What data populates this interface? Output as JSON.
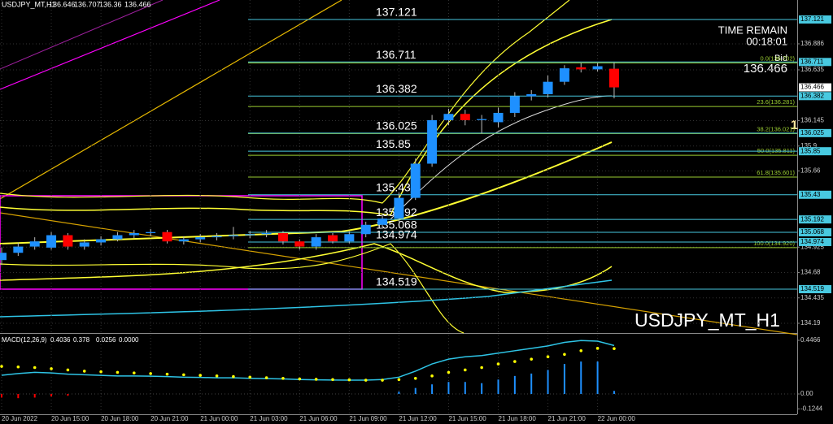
{
  "header": {
    "symbol": "USDJPY_MT,H1",
    "time_remain_label": "TIME REMAIN",
    "time_remain": "00:18:01",
    "bid_label": "Bid",
    "watermark": "USDJPY_MT_H1",
    "marker": "1"
  },
  "chart_data": [
    {
      "type": "candlestick",
      "categories": [
        "20 Jun 2022",
        null,
        null,
        "20 Jun 15:00",
        null,
        null,
        "20 Jun 18:00",
        null,
        null,
        "20 Jun 21:00",
        null,
        null,
        "21 Jun 00:00",
        null,
        null,
        "21 Jun 03:00",
        null,
        null,
        "21 Jun 06:00",
        null,
        null,
        "21 Jun 09:00",
        null,
        null,
        "21 Jun 12:00",
        null,
        null,
        "21 Jun 15:00",
        null,
        null,
        "21 Jun 18:00",
        null,
        null,
        "21 Jun 21:00",
        null,
        null,
        "22 Jun 00:00",
        null
      ],
      "open": [
        134.8,
        134.87,
        134.93,
        134.92,
        135.04,
        134.93,
        134.97,
        135.0,
        135.04,
        135.06,
        135.07,
        134.98,
        135.0,
        135.02,
        135.03,
        135.04,
        135.05,
        135.06,
        134.98,
        134.93,
        135.04,
        134.98,
        135.05,
        135.14,
        135.2,
        135.4,
        135.73,
        136.15,
        136.21,
        136.15,
        136.13,
        136.22,
        136.38,
        136.4,
        136.52,
        136.66,
        136.64,
        136.646
      ],
      "high": [
        134.92,
        134.97,
        135.02,
        135.07,
        135.06,
        135.0,
        135.03,
        135.07,
        135.09,
        135.1,
        135.09,
        135.03,
        135.05,
        135.06,
        135.12,
        135.08,
        135.09,
        135.08,
        135.0,
        135.05,
        135.06,
        135.08,
        135.17,
        135.24,
        135.45,
        135.78,
        136.2,
        136.26,
        136.25,
        136.2,
        136.27,
        136.42,
        136.44,
        136.58,
        136.68,
        136.7,
        136.7,
        136.707
      ],
      "low": [
        134.75,
        134.84,
        134.9,
        134.9,
        134.9,
        134.9,
        134.94,
        134.98,
        135.01,
        135.03,
        134.96,
        134.95,
        134.97,
        134.99,
        135.0,
        135.01,
        135.02,
        134.95,
        134.9,
        134.9,
        134.96,
        134.96,
        135.02,
        135.1,
        135.17,
        135.38,
        135.7,
        136.1,
        136.1,
        136.02,
        136.08,
        136.18,
        136.34,
        136.37,
        136.49,
        136.61,
        136.62,
        136.36
      ],
      "close": [
        134.87,
        134.93,
        134.98,
        135.04,
        134.93,
        134.97,
        135.0,
        135.04,
        135.06,
        135.07,
        134.98,
        135.0,
        135.02,
        135.03,
        135.04,
        135.05,
        135.06,
        134.98,
        134.93,
        135.02,
        134.98,
        135.05,
        135.14,
        135.2,
        135.4,
        135.73,
        136.15,
        136.21,
        136.15,
        136.16,
        136.22,
        136.38,
        136.4,
        136.52,
        136.65,
        136.64,
        136.67,
        136.466
      ],
      "up_color": "#1e90ff",
      "down_color": "#ff0000",
      "ylim": [
        134.096,
        137.309
      ],
      "yticks": [
        136.886,
        136.635,
        136.145,
        135.9,
        135.66,
        134.925,
        134.68,
        134.435,
        134.19
      ],
      "levels": [
        137.121,
        136.711,
        136.382,
        136.025,
        135.85,
        135.43,
        135.192,
        135.068,
        134.974,
        134.519
      ],
      "fib": [
        {
          "value": 136.702,
          "label": "0.0(136.702)"
        },
        {
          "value": 136.281,
          "label": "23.6(136.281)"
        },
        {
          "value": 136.021,
          "label": "38.2(136.021)"
        },
        {
          "value": 135.811,
          "label": "50.0(135.811)"
        },
        {
          "value": 135.601,
          "label": "61.8(135.601)"
        },
        {
          "value": 134.92,
          "label": "100.0(134.920)"
        }
      ],
      "grid": true
    },
    {
      "type": "macd",
      "title": "MACD(12,26,9)",
      "readout": [
        0.4036,
        0.378,
        0.0256,
        {
          "value": 0,
          "label": "0.0000"
        }
      ],
      "ylim": [
        -0.169,
        0.494
      ],
      "yticks": [
        0.4466,
        {
          "value": 0,
          "label": "0.00"
        },
        -0.1244
      ],
      "series": [
        {
          "style": "bar",
          "color": "#1e90ff",
          "neg_color": "#ff0000",
          "values": [
            -0.03,
            -0.035,
            -0.03,
            -0.02,
            -0.015,
            0,
            0,
            0,
            0,
            0,
            0,
            0,
            0,
            0,
            0,
            0,
            0,
            0,
            0,
            0,
            0,
            0,
            0,
            0,
            0.02,
            0.05,
            0.08,
            0.1,
            0.1,
            0.09,
            0.12,
            0.15,
            0.17,
            0.2,
            0.25,
            0.27,
            0.27,
            0.0256
          ]
        },
        {
          "style": "line",
          "color": "#2ec4e6",
          "values": [
            0.156,
            0.17,
            0.18,
            0.175,
            0.165,
            0.16,
            0.155,
            0.15,
            0.15,
            0.148,
            0.145,
            0.14,
            0.138,
            0.135,
            0.135,
            0.13,
            0.128,
            0.125,
            0.12,
            0.118,
            0.116,
            0.115,
            0.115,
            0.12,
            0.14,
            0.19,
            0.25,
            0.29,
            0.31,
            0.32,
            0.34,
            0.36,
            0.38,
            0.4,
            0.43,
            0.445,
            0.44,
            0.4036
          ]
        },
        {
          "style": "dots",
          "color": "#ffff00",
          "values": [
            0.23,
            0.225,
            0.22,
            0.21,
            0.2,
            0.19,
            0.185,
            0.18,
            0.175,
            0.17,
            0.165,
            0.16,
            0.155,
            0.15,
            0.145,
            0.14,
            0.135,
            0.13,
            0.125,
            0.122,
            0.12,
            0.118,
            0.115,
            0.115,
            0.12,
            0.13,
            0.15,
            0.18,
            0.2,
            0.22,
            0.25,
            0.27,
            0.29,
            0.31,
            0.33,
            0.36,
            0.38,
            0.378
          ]
        }
      ]
    }
  ]
}
